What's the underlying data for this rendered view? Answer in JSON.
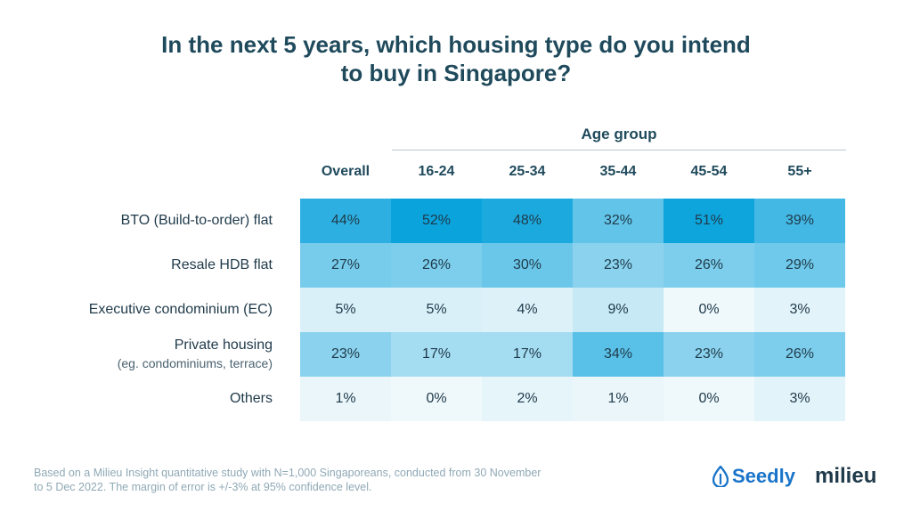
{
  "title_line1": "In the next 5 years, which housing type do you intend",
  "title_line2": "to buy in Singapore?",
  "group_label": "Age group",
  "footnote_line1": "Based on a Milieu Insight quantitative study with N=1,000 Singaporeans, conducted from 30 November",
  "footnote_line2": "to 5 Dec 2022. The margin of error is +/-3% at 95% confidence level.",
  "brands": {
    "seedly": "Seedly",
    "milieu": "milieu"
  },
  "colors": {
    "scale_low": "#eff8fb",
    "scale_high": "#0aa3dc",
    "title": "#1f4a5c"
  },
  "chart_data": {
    "type": "table",
    "columns": [
      "Overall",
      "16-24",
      "25-34",
      "35-44",
      "45-54",
      "55+"
    ],
    "rows": [
      {
        "label": "BTO (Build-to-order) flat",
        "sub": "",
        "values": [
          44,
          52,
          48,
          32,
          51,
          39
        ]
      },
      {
        "label": "Resale HDB flat",
        "sub": "",
        "values": [
          27,
          26,
          30,
          23,
          26,
          29
        ]
      },
      {
        "label": "Executive condominium (EC)",
        "sub": "",
        "values": [
          5,
          5,
          4,
          9,
          0,
          3
        ]
      },
      {
        "label": "Private housing",
        "sub": "(eg. condominiums, terrace)",
        "values": [
          23,
          17,
          17,
          34,
          23,
          26
        ]
      },
      {
        "label": "Others",
        "sub": "",
        "values": [
          1,
          0,
          2,
          1,
          0,
          3
        ]
      }
    ],
    "unit": "%"
  }
}
